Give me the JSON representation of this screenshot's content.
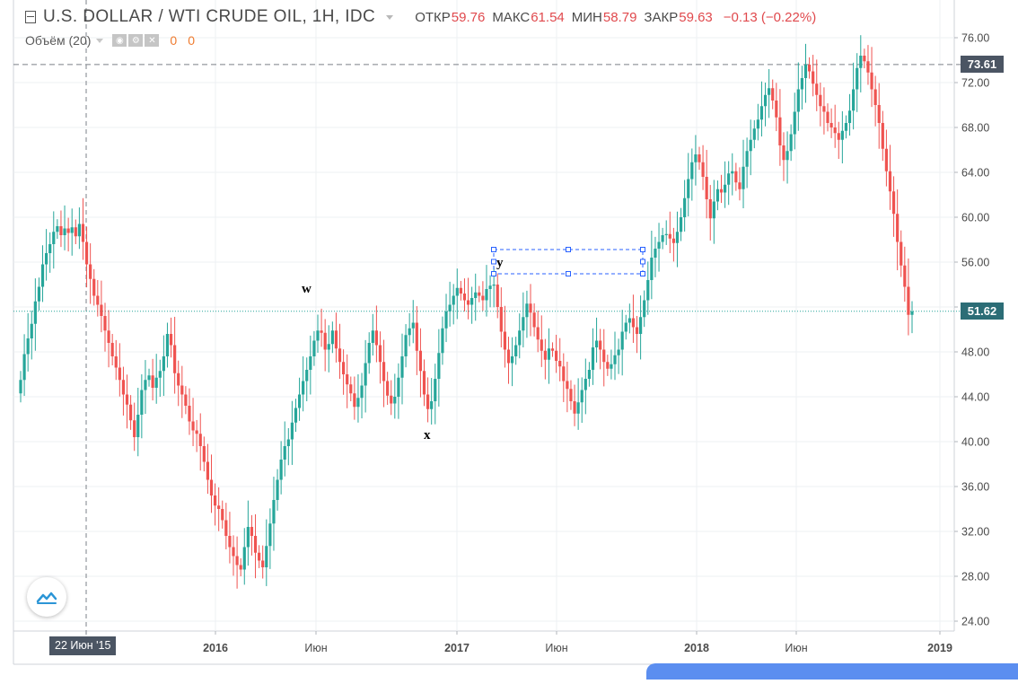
{
  "header": {
    "symbol": "U.S. DOLLAR / WTI CRUDE OIL, 1Н, IDC",
    "ohlc": [
      {
        "label": "ОТКР",
        "value": "59.76"
      },
      {
        "label": "МАКС",
        "value": "61.54"
      },
      {
        "label": "МИН",
        "value": "58.79"
      },
      {
        "label": "ЗАКР",
        "value": "59.63"
      }
    ],
    "change": "−0.13 (−0.22%)"
  },
  "volume": {
    "label": "Объём (20)",
    "value1": "0",
    "value2": "0"
  },
  "price_labels": {
    "crosshair": "73.61",
    "last": "51.62"
  },
  "crosshair_date": "22 Июн '15",
  "annotations": {
    "w": "w",
    "x": "x",
    "y": "y"
  },
  "icons": {
    "logo": "tradingview-cloud-icon",
    "toggle": "collapse-toggle-icon"
  },
  "colors": {
    "up": "#26a69a",
    "down": "#ef5350",
    "grid": "#eef0f3",
    "crosshair": "#7b8088",
    "last_price": "#26a69a"
  },
  "chart_data": {
    "type": "candlestick",
    "y_axis": {
      "min": 24,
      "max": 76,
      "ticks": [
        "24.00",
        "28.00",
        "32.00",
        "36.00",
        "40.00",
        "44.00",
        "48.00",
        "52.00",
        "56.00",
        "60.00",
        "64.00",
        "68.00",
        "72.00",
        "76.00"
      ],
      "position": "right"
    },
    "x_axis": {
      "ticks": [
        {
          "label": "2016",
          "bold": true
        },
        {
          "label": "Июн",
          "bold": false
        },
        {
          "label": "2017",
          "bold": true
        },
        {
          "label": "Июн",
          "bold": false
        },
        {
          "label": "2018",
          "bold": true
        },
        {
          "label": "Июн",
          "bold": false
        },
        {
          "label": "2019",
          "bold": true
        }
      ]
    },
    "horizontal_lines": [
      {
        "name": "crosshair",
        "value": 73.61,
        "style": "dashed"
      },
      {
        "name": "last-price",
        "value": 51.62,
        "style": "dotted"
      }
    ],
    "candle_closes": [
      45.5,
      47.8,
      49.2,
      50.5,
      52.5,
      53.8,
      55.8,
      56.8,
      57.6,
      58.7,
      59.2,
      58.4,
      59.0,
      58.6,
      59.1,
      58.3,
      59.4,
      57.8,
      55.8,
      54.5,
      53.0,
      52.2,
      51.2,
      49.9,
      48.8,
      47.6,
      46.6,
      45.5,
      44.2,
      43.3,
      41.9,
      40.4,
      42.4,
      44.6,
      45.5,
      45.9,
      44.8,
      45.7,
      46.3,
      47.6,
      49.6,
      48.6,
      46.1,
      45.0,
      44.2,
      43.2,
      41.8,
      41.0,
      40.7,
      39.6,
      38.2,
      36.6,
      35.2,
      34.3,
      34.0,
      33.0,
      31.6,
      30.6,
      29.8,
      29.0,
      28.6,
      30.6,
      32.4,
      31.6,
      30.1,
      29.4,
      28.8,
      30.7,
      32.7,
      34.8,
      36.6,
      38.4,
      39.6,
      40.2,
      41.7,
      43.0,
      44.2,
      45.4,
      46.4,
      47.6,
      49.0,
      49.9,
      49.7,
      48.2,
      48.7,
      49.9,
      48.3,
      47.1,
      46.0,
      45.1,
      44.3,
      43.1,
      43.9,
      45.0,
      47.0,
      48.8,
      49.9,
      48.6,
      47.1,
      45.4,
      44.1,
      43.4,
      44.0,
      45.7,
      47.6,
      49.5,
      50.1,
      50.6,
      48.1,
      46.3,
      44.2,
      42.9,
      43.6,
      45.6,
      47.9,
      50.1,
      51.6,
      52.2,
      53.0,
      53.7,
      53.2,
      52.6,
      52.2,
      52.8,
      53.3,
      53.0,
      52.6,
      53.6,
      53.9,
      54.0,
      52.0,
      49.8,
      48.2,
      47.0,
      47.6,
      48.6,
      49.9,
      51.1,
      52.3,
      51.5,
      50.2,
      49.1,
      48.1,
      47.3,
      48.3,
      48.1,
      47.2,
      46.7,
      45.4,
      44.7,
      43.6,
      42.5,
      43.5,
      44.6,
      45.6,
      46.4,
      48.4,
      49.0,
      48.2,
      47.1,
      46.5,
      46.9,
      47.7,
      48.2,
      49.8,
      50.6,
      51.0,
      50.2,
      49.6,
      51.1,
      52.6,
      54.4,
      56.4,
      57.2,
      57.8,
      58.4,
      58.5,
      58.1,
      57.7,
      58.7,
      60.0,
      61.7,
      63.4,
      64.9,
      65.6,
      64.9,
      63.6,
      61.6,
      59.9,
      61.4,
      62.5,
      62.2,
      62.9,
      63.9,
      64.1,
      63.1,
      62.5,
      64.5,
      65.9,
      66.9,
      67.9,
      68.7,
      69.9,
      70.9,
      71.5,
      70.4,
      68.9,
      66.4,
      65.1,
      65.9,
      67.4,
      69.4,
      71.4,
      72.4,
      73.6,
      73.0,
      71.9,
      70.9,
      69.9,
      69.4,
      68.4,
      68.0,
      67.5,
      66.9,
      67.7,
      68.4,
      69.5,
      71.4,
      73.3,
      74.4,
      73.9,
      72.9,
      71.4,
      70.0,
      68.4,
      66.1,
      64.1,
      62.3,
      60.3,
      57.8,
      55.7,
      53.8,
      51.3,
      51.6
    ]
  }
}
